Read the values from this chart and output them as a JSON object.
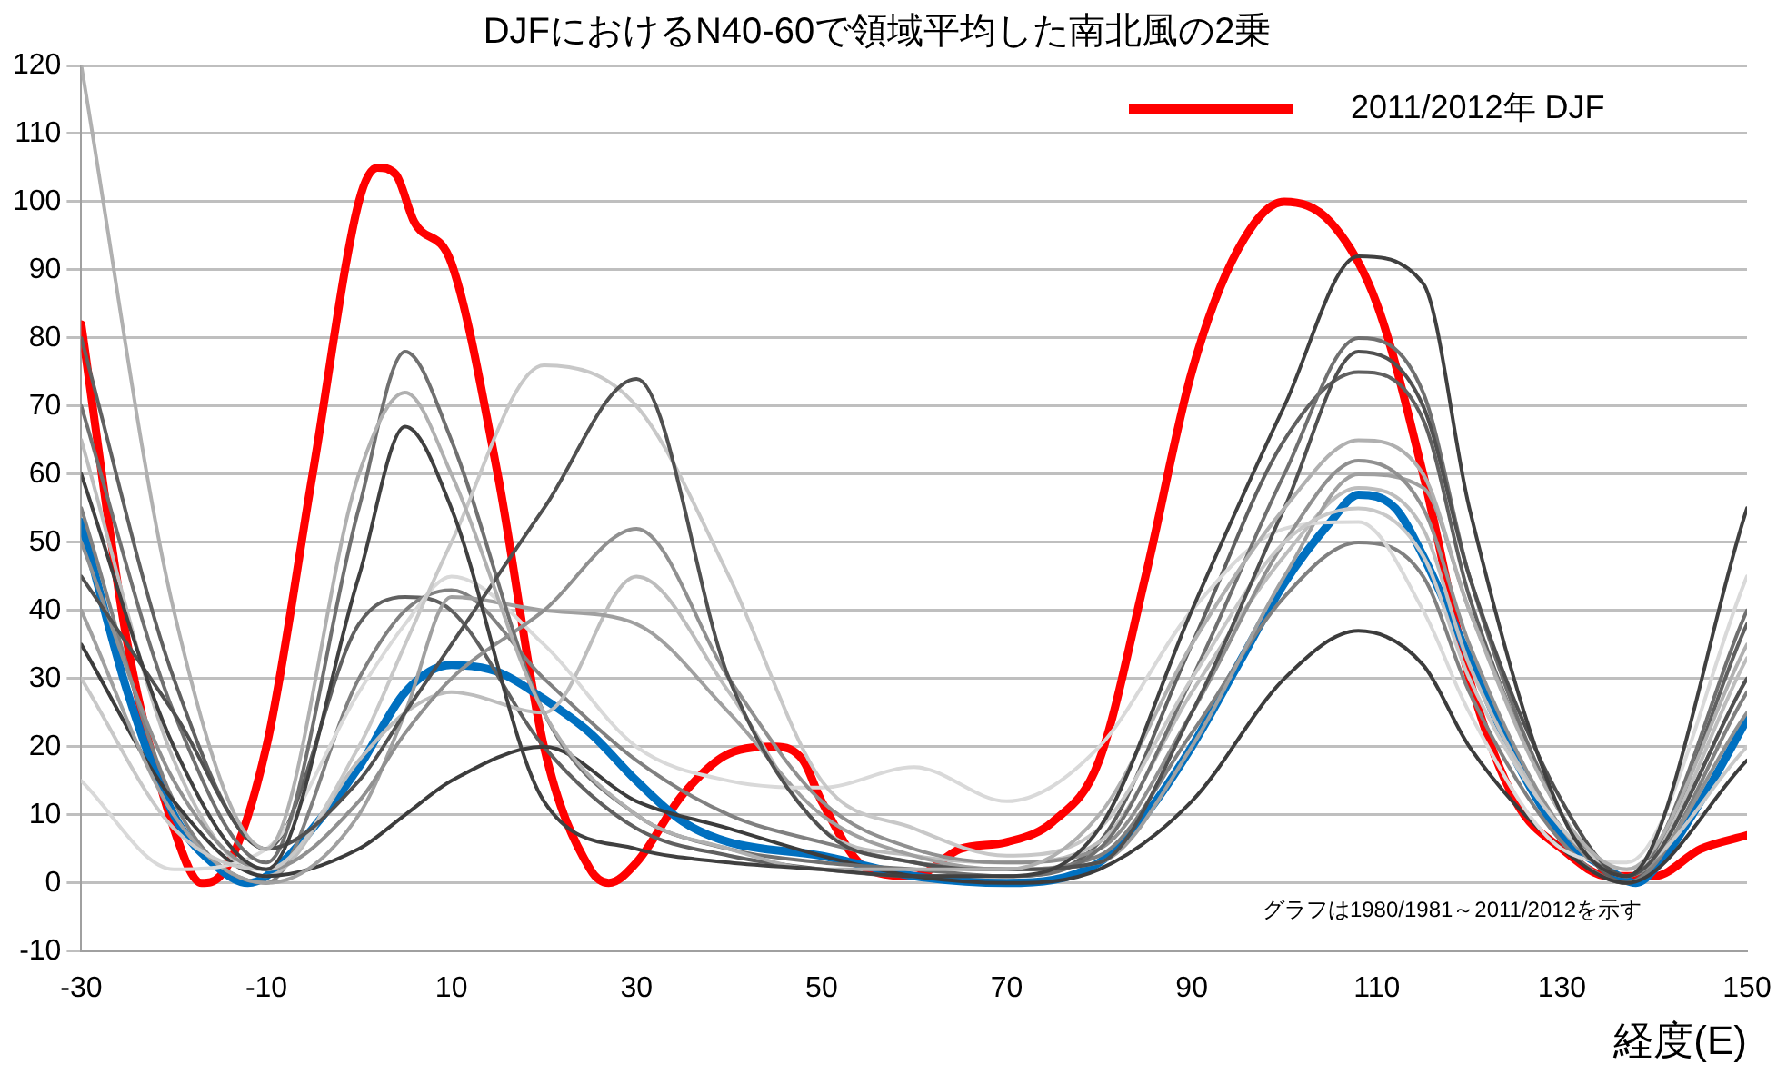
{
  "chart_data": {
    "type": "line",
    "title": "DJFにおけるN40-60で領域平均した南北風の2乗",
    "xlabel": "経度(E)",
    "xlim": [
      -30,
      150
    ],
    "xticks": [
      -30,
      -10,
      10,
      30,
      50,
      70,
      90,
      110,
      130,
      150
    ],
    "ylim": [
      -10,
      120
    ],
    "yticks": [
      -10,
      0,
      10,
      20,
      30,
      40,
      50,
      60,
      70,
      80,
      90,
      100,
      110,
      120
    ],
    "grid": "y",
    "legend": "top right",
    "marker": "none",
    "line_style": "solid",
    "annotations": [
      "グラフは1980/1981～2011/2012を示す"
    ],
    "series": [
      {
        "color": "#404040",
        "x": [
          -30,
          -20,
          -10,
          0,
          5,
          10,
          20,
          30,
          40,
          50,
          60,
          70,
          80,
          90,
          100,
          108,
          115,
          120,
          130,
          137,
          150
        ],
        "values": [
          60,
          20,
          2,
          45,
          67,
          55,
          12,
          5,
          3,
          2,
          1,
          1,
          8,
          40,
          70,
          92,
          88,
          55,
          10,
          1,
          55
        ]
      },
      {
        "color": "#b0b0b0",
        "x": [
          -30,
          -20,
          -10,
          0,
          5,
          10,
          20,
          30,
          40,
          50,
          60,
          70,
          80,
          90,
          100,
          108,
          115,
          120,
          130,
          137,
          150
        ],
        "values": [
          120,
          40,
          5,
          60,
          72,
          60,
          25,
          10,
          5,
          2,
          2,
          2,
          10,
          35,
          55,
          65,
          60,
          40,
          10,
          2,
          35
        ]
      },
      {
        "color": "#505050",
        "x": [
          -30,
          -20,
          -10,
          0,
          5,
          10,
          20,
          30,
          40,
          50,
          60,
          70,
          80,
          90,
          100,
          108,
          115,
          120,
          130,
          137,
          150
        ],
        "values": [
          45,
          25,
          5,
          15,
          25,
          35,
          55,
          74,
          30,
          8,
          3,
          2,
          3,
          25,
          55,
          78,
          70,
          45,
          12,
          1,
          30
        ]
      },
      {
        "color": "#c8c8c8",
        "x": [
          -30,
          -20,
          -10,
          0,
          5,
          10,
          20,
          30,
          40,
          50,
          60,
          70,
          80,
          90,
          100,
          108,
          115,
          120,
          130,
          137,
          150
        ],
        "values": [
          30,
          8,
          2,
          20,
          35,
          50,
          76,
          70,
          45,
          15,
          8,
          4,
          8,
          30,
          50,
          55,
          48,
          30,
          8,
          2,
          20
        ]
      },
      {
        "color": "#707070",
        "x": [
          -30,
          -20,
          -10,
          0,
          5,
          10,
          20,
          30,
          40,
          50,
          60,
          70,
          80,
          90,
          100,
          108,
          115,
          120,
          130,
          137,
          150
        ],
        "values": [
          70,
          25,
          3,
          55,
          78,
          65,
          25,
          10,
          5,
          3,
          2,
          1,
          5,
          30,
          60,
          80,
          72,
          45,
          10,
          1,
          40
        ]
      },
      {
        "color": "#909090",
        "x": [
          -30,
          -20,
          -10,
          0,
          5,
          10,
          20,
          30,
          40,
          50,
          60,
          70,
          80,
          90,
          100,
          108,
          115,
          120,
          130,
          137,
          150
        ],
        "values": [
          50,
          15,
          2,
          12,
          22,
          30,
          40,
          52,
          30,
          12,
          5,
          3,
          5,
          25,
          50,
          62,
          55,
          35,
          8,
          1,
          25
        ]
      },
      {
        "color": "#d9d9d9",
        "x": [
          -30,
          -20,
          -10,
          0,
          5,
          10,
          20,
          30,
          40,
          50,
          60,
          70,
          80,
          90,
          100,
          108,
          115,
          120,
          130,
          137,
          150
        ],
        "values": [
          15,
          2,
          5,
          28,
          38,
          45,
          35,
          20,
          15,
          14,
          17,
          12,
          20,
          40,
          52,
          53,
          40,
          25,
          5,
          3,
          45
        ]
      },
      {
        "color": "#a0a0a0",
        "x": [
          -30,
          -20,
          -10,
          0,
          5,
          10,
          20,
          30,
          40,
          50,
          60,
          70,
          80,
          90,
          100,
          108,
          115,
          120,
          130,
          137,
          150
        ],
        "values": [
          40,
          10,
          0,
          10,
          25,
          42,
          40,
          38,
          25,
          10,
          4,
          2,
          3,
          20,
          45,
          60,
          58,
          40,
          10,
          1,
          30
        ]
      },
      {
        "color": "#3c3c3c",
        "x": [
          -30,
          -20,
          -10,
          0,
          5,
          10,
          20,
          30,
          40,
          50,
          60,
          70,
          80,
          90,
          100,
          108,
          115,
          120,
          130,
          137,
          150
        ],
        "values": [
          35,
          12,
          1,
          5,
          10,
          15,
          20,
          12,
          8,
          4,
          1,
          0,
          2,
          12,
          30,
          37,
          32,
          20,
          5,
          0,
          18
        ]
      },
      {
        "color": "#bdbdbd",
        "x": [
          -30,
          -20,
          -10,
          0,
          5,
          10,
          20,
          30,
          40,
          50,
          60,
          70,
          80,
          90,
          100,
          108,
          115,
          120,
          130,
          137,
          150
        ],
        "values": [
          65,
          18,
          1,
          18,
          25,
          28,
          25,
          45,
          28,
          8,
          4,
          3,
          6,
          28,
          48,
          58,
          52,
          32,
          8,
          1,
          33
        ]
      },
      {
        "color": "#808080",
        "x": [
          -30,
          -20,
          -10,
          0,
          5,
          10,
          20,
          30,
          40,
          50,
          60,
          70,
          80,
          90,
          100,
          108,
          115,
          120,
          130,
          137,
          150
        ],
        "values": [
          55,
          12,
          0,
          30,
          40,
          43,
          30,
          18,
          10,
          6,
          3,
          2,
          4,
          22,
          42,
          50,
          45,
          28,
          6,
          0,
          28
        ]
      },
      {
        "color": "#606060",
        "x": [
          -30,
          -20,
          -10,
          0,
          5,
          10,
          20,
          30,
          40,
          50,
          60,
          70,
          80,
          90,
          100,
          108,
          115,
          120,
          130,
          137,
          150
        ],
        "values": [
          80,
          30,
          5,
          38,
          42,
          40,
          20,
          8,
          4,
          2,
          1,
          1,
          6,
          35,
          65,
          75,
          68,
          42,
          10,
          0,
          38
        ]
      },
      {
        "color": "#0070c0",
        "x": [
          -30,
          -25,
          -20,
          -15,
          -12,
          -10,
          -5,
          0,
          5,
          10,
          15,
          20,
          25,
          30,
          35,
          40,
          50,
          60,
          70,
          80,
          85,
          90,
          95,
          100,
          105,
          108,
          112,
          115,
          120,
          125,
          130,
          135,
          138,
          140,
          145,
          150
        ],
        "values": [
          53,
          28,
          10,
          2,
          0,
          1,
          8,
          17,
          28,
          32,
          31,
          27,
          22,
          15,
          9,
          6,
          4,
          1,
          0,
          3,
          10,
          20,
          32,
          44,
          53,
          57,
          55,
          48,
          33,
          18,
          7,
          2,
          0,
          2,
          12,
          24
        ]
      },
      {
        "name": "2011/2012年 DJF",
        "color": "#ff0000",
        "x": [
          -30,
          -25,
          -20,
          -17,
          -15,
          -10,
          -5,
          0,
          2,
          4,
          6,
          10,
          15,
          20,
          25,
          27,
          30,
          35,
          40,
          45,
          48,
          50,
          55,
          60,
          65,
          70,
          75,
          80,
          85,
          90,
          95,
          100,
          105,
          110,
          115,
          120,
          125,
          130,
          135,
          140,
          145,
          150
        ],
        "values": [
          82,
          35,
          8,
          0,
          1,
          20,
          60,
          100,
          105,
          104,
          97,
          91,
          60,
          20,
          2,
          0,
          3,
          13,
          19,
          20,
          18,
          12,
          2,
          1,
          5,
          6,
          9,
          18,
          45,
          75,
          93,
          100,
          97,
          85,
          60,
          30,
          12,
          5,
          1,
          1,
          5,
          7
        ]
      }
    ]
  }
}
